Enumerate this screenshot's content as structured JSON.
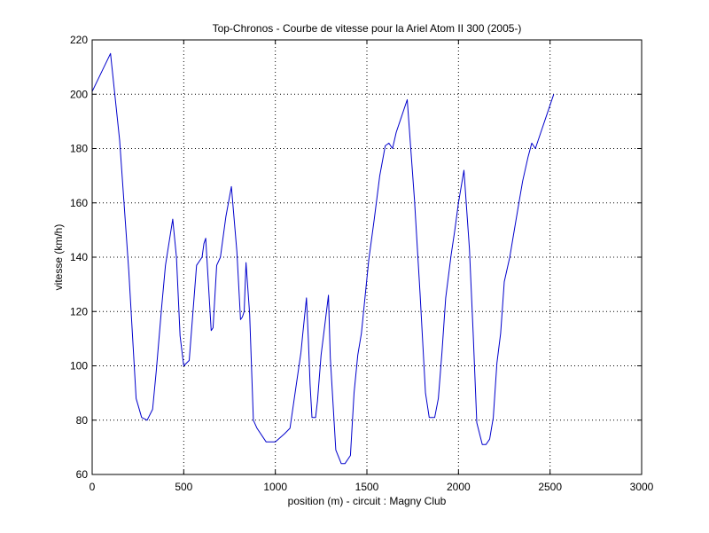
{
  "chart_data": {
    "type": "line",
    "title": "Top-Chronos - Courbe de vitesse pour la Ariel Atom II 300 (2005-)",
    "xlabel": "position (m) - circuit : Magny Club",
    "ylabel": "vitesse (km/h)",
    "xlim": [
      0,
      3000
    ],
    "ylim": [
      60,
      220
    ],
    "xticks": [
      0,
      500,
      1000,
      1500,
      2000,
      2500,
      3000
    ],
    "yticks": [
      60,
      80,
      100,
      120,
      140,
      160,
      180,
      200,
      220
    ],
    "grid": true,
    "line_color": "#0000cc",
    "series": [
      {
        "x": [
          0,
          100,
          150,
          200,
          240,
          270,
          300,
          330,
          350,
          380,
          400,
          440,
          460,
          480,
          500,
          530,
          570,
          600,
          610,
          620,
          650,
          660,
          680,
          700,
          730,
          760,
          790,
          810,
          820,
          830,
          840,
          860,
          880,
          900,
          950,
          1000,
          1050,
          1080,
          1110,
          1140,
          1150,
          1170,
          1180,
          1190,
          1200,
          1220,
          1230,
          1250,
          1270,
          1290,
          1300,
          1330,
          1360,
          1380,
          1410,
          1430,
          1450,
          1470,
          1510,
          1540,
          1570,
          1600,
          1620,
          1640,
          1660,
          1690,
          1720,
          1760,
          1790,
          1820,
          1840,
          1870,
          1890,
          1910,
          1930,
          1960,
          1980,
          2000,
          2030,
          2060,
          2080,
          2100,
          2130,
          2150,
          2170,
          2190,
          2210,
          2230,
          2250,
          2280,
          2300,
          2330,
          2350,
          2380,
          2400,
          2420,
          2450,
          2480,
          2520
        ],
        "y": [
          201,
          215,
          183,
          135,
          88,
          81,
          80,
          84,
          98,
          122,
          137,
          154,
          140,
          111,
          100,
          102,
          137,
          140,
          145,
          147,
          113,
          114,
          137,
          140,
          155,
          166,
          142,
          117,
          118,
          120,
          138,
          119,
          80,
          77,
          72,
          72,
          75,
          77,
          91,
          105,
          112,
          125,
          110,
          93,
          81,
          81,
          87,
          104,
          115,
          126,
          103,
          69,
          64,
          64,
          67,
          90,
          104,
          112,
          139,
          154,
          170,
          181,
          182,
          180,
          186,
          192,
          198,
          161,
          127,
          90,
          81,
          81,
          88,
          105,
          125,
          141,
          150,
          160,
          172,
          143,
          112,
          79,
          71,
          71,
          73,
          81,
          101,
          112,
          131,
          140,
          148,
          160,
          168,
          177,
          182,
          180,
          186,
          192,
          200
        ]
      }
    ]
  }
}
